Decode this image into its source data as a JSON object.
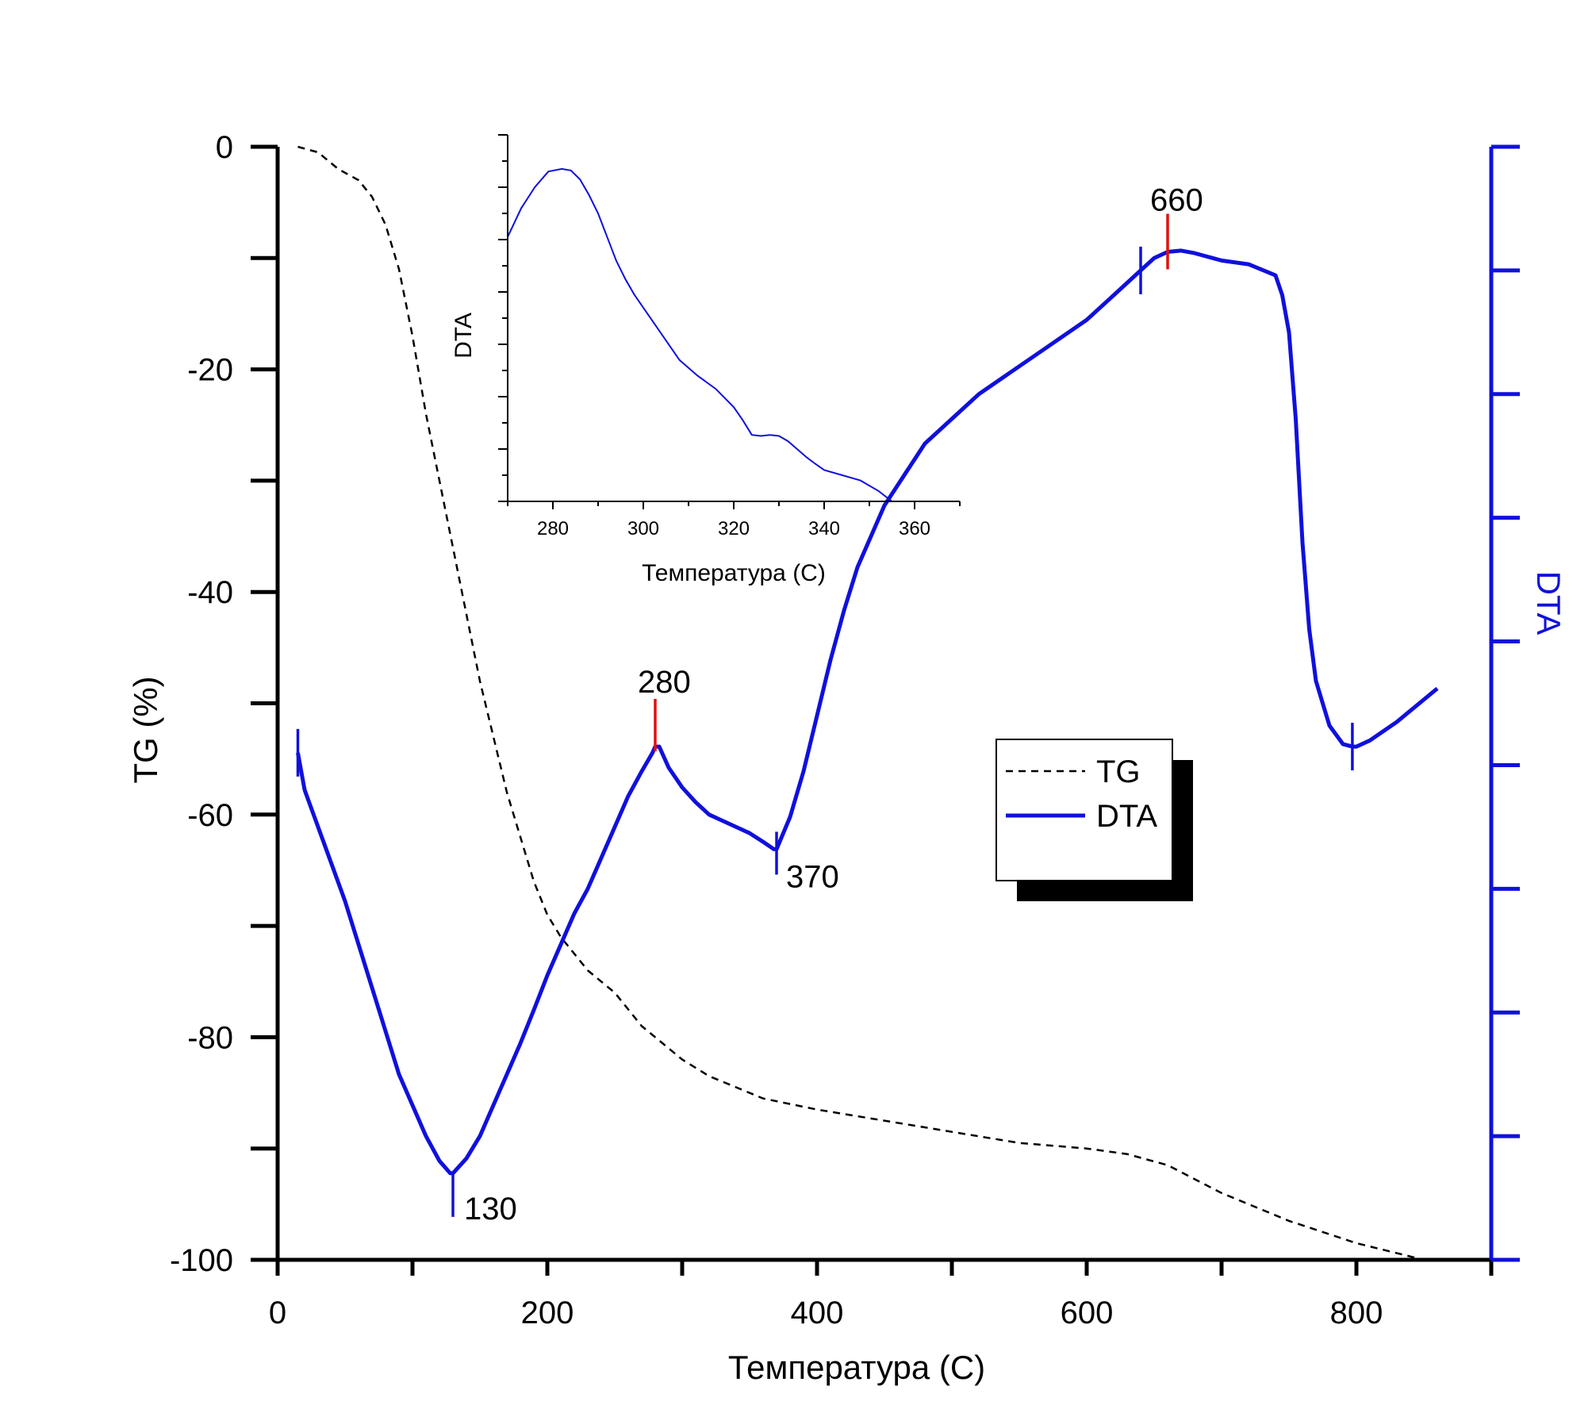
{
  "chart_data": [
    {
      "type": "line",
      "xlabel": "Температура (С)",
      "ylabel": "TG (%)",
      "ylabel_right": "DTA",
      "xlim": [
        0,
        900
      ],
      "ylim": [
        -100,
        0
      ],
      "x_ticks": [
        "0",
        "200",
        "400",
        "600",
        "800"
      ],
      "y_ticks": [
        "0",
        "-20",
        "-40",
        "-60",
        "-80",
        "-100"
      ],
      "legend_position": "center-right",
      "legend": [
        "TG",
        "DTA"
      ],
      "colors": {
        "tg": "#000000",
        "dta": "#1010dd",
        "peak_marker": "#e01010"
      },
      "series": [
        {
          "name": "TG",
          "axis": "left",
          "style": "dashed",
          "x": [
            15,
            30,
            45,
            60,
            70,
            80,
            90,
            100,
            110,
            120,
            130,
            140,
            150,
            160,
            170,
            180,
            190,
            200,
            210,
            220,
            230,
            240,
            250,
            260,
            270,
            280,
            290,
            300,
            320,
            340,
            360,
            380,
            400,
            450,
            500,
            550,
            600,
            630,
            660,
            700,
            750,
            800,
            850
          ],
          "y": [
            0,
            -0.5,
            -2,
            -3,
            -4.5,
            -7,
            -11,
            -17,
            -24,
            -30,
            -36,
            -42,
            -48,
            -53,
            -58,
            -62,
            -66,
            -69,
            -71,
            -72.5,
            -74,
            -75,
            -76,
            -77.5,
            -79,
            -80,
            -81,
            -82,
            -83.5,
            -84.5,
            -85.5,
            -86,
            -86.5,
            -87.5,
            -88.5,
            -89.5,
            -90,
            -90.5,
            -91.5,
            -94,
            -96.5,
            -98.5,
            -100
          ]
        },
        {
          "name": "DTA",
          "axis": "right",
          "style": "solid",
          "ylim": [
            -0.2,
            8.8
          ],
          "x": [
            15,
            20,
            30,
            50,
            70,
            90,
            100,
            110,
            120,
            128,
            130,
            140,
            150,
            160,
            170,
            180,
            190,
            200,
            210,
            220,
            230,
            240,
            250,
            260,
            270,
            278,
            280,
            283,
            290,
            300,
            310,
            320,
            330,
            340,
            350,
            360,
            368,
            370,
            380,
            390,
            400,
            410,
            420,
            430,
            450,
            480,
            520,
            560,
            600,
            620,
            640,
            650,
            660,
            670,
            680,
            700,
            720,
            740,
            745,
            750,
            755,
            760,
            765,
            770,
            780,
            790,
            797,
            800,
            810,
            830,
            860
          ],
          "y": [
            3.9,
            3.6,
            3.3,
            2.7,
            2.0,
            1.3,
            1.05,
            0.8,
            0.6,
            0.5,
            0.5,
            0.62,
            0.8,
            1.05,
            1.3,
            1.55,
            1.82,
            2.1,
            2.35,
            2.6,
            2.8,
            3.05,
            3.3,
            3.55,
            3.75,
            3.9,
            3.95,
            3.95,
            3.78,
            3.62,
            3.5,
            3.4,
            3.35,
            3.3,
            3.25,
            3.18,
            3.12,
            3.12,
            3.38,
            3.75,
            4.2,
            4.65,
            5.05,
            5.4,
            5.9,
            6.4,
            6.8,
            7.1,
            7.4,
            7.6,
            7.8,
            7.9,
            7.95,
            7.96,
            7.94,
            7.88,
            7.85,
            7.76,
            7.6,
            7.3,
            6.6,
            5.6,
            4.9,
            4.48,
            4.12,
            3.97,
            3.95,
            3.95,
            4.0,
            4.15,
            4.42
          ]
        }
      ],
      "annotations": [
        {
          "text": "130",
          "x": 130,
          "y": 0.5,
          "color": "blue"
        },
        {
          "text": "280",
          "x": 280,
          "y": 3.95,
          "color": "red"
        },
        {
          "text": "370",
          "x": 370,
          "y": 3.12,
          "color": "blue"
        },
        {
          "text": "660",
          "x": 660,
          "y": 7.95,
          "color": "red"
        }
      ],
      "extra_markers_x": [
        15,
        640,
        797
      ]
    },
    {
      "type": "line",
      "role": "inset",
      "xlabel": "Температура (С)",
      "ylabel": "DTA",
      "xlim": [
        270,
        370
      ],
      "x_ticks": [
        "280",
        "300",
        "320",
        "340",
        "360"
      ],
      "ylim": [
        0,
        7
      ],
      "series": [
        {
          "name": "DTA",
          "x": [
            270,
            273,
            276,
            279,
            282,
            284,
            286,
            288,
            290,
            292,
            294,
            296,
            298,
            300,
            304,
            308,
            312,
            316,
            320,
            322,
            324,
            326,
            328,
            330,
            332,
            334,
            336,
            338,
            340,
            344,
            348,
            352,
            355
          ],
          "y": [
            5.05,
            5.6,
            6.0,
            6.3,
            6.35,
            6.32,
            6.15,
            5.85,
            5.5,
            5.05,
            4.6,
            4.25,
            3.95,
            3.7,
            3.2,
            2.7,
            2.4,
            2.15,
            1.8,
            1.55,
            1.27,
            1.25,
            1.27,
            1.25,
            1.15,
            1.0,
            0.85,
            0.72,
            0.6,
            0.5,
            0.4,
            0.2,
            0.0
          ]
        }
      ]
    }
  ]
}
